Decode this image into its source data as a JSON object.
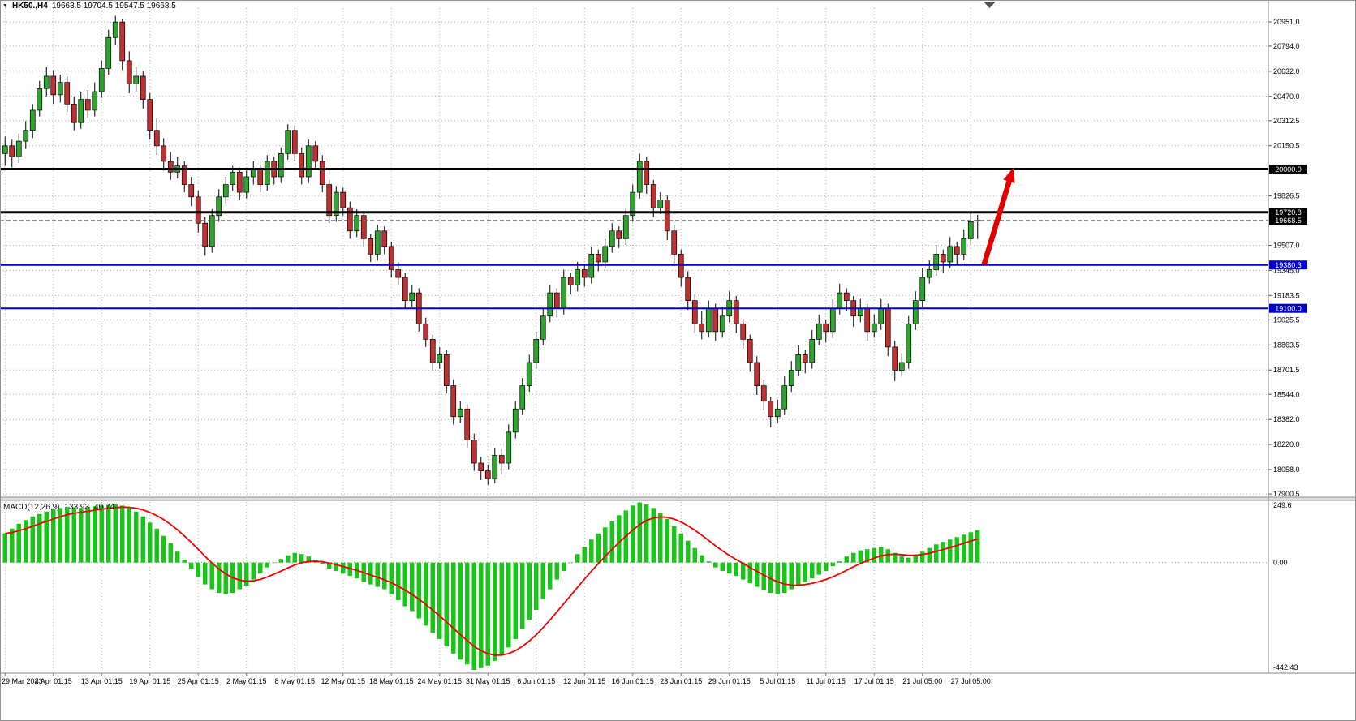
{
  "ui": {
    "symbol": "HK50.,H4",
    "ohlc": "19663.5 19704.5 19547.5 19668.5",
    "macd": {
      "name": "MACD(12,26,9)",
      "main_value": "133.93",
      "signal_value": "40.74",
      "scale_max": "249.6",
      "scale_zero": "0.00",
      "scale_min": "-442.43"
    }
  },
  "chart_data": [
    {
      "type": "candlestick",
      "symbol": "HK50.",
      "timeframe": "H4",
      "y_range": [
        17880,
        21040
      ],
      "y_axis_ticks": [
        "20951.0",
        "20794.0",
        "20632.0",
        "20470.0",
        "20312.5",
        "20150.5",
        "19826.5",
        "19507.0",
        "19345.0",
        "19183.5",
        "19025.5",
        "18863.5",
        "18701.5",
        "18544.0",
        "18382.0",
        "18220.0",
        "18058.0",
        "17900.5"
      ],
      "x_labels": [
        "29 Mar 2023",
        "4 Apr 01:15",
        "13 Apr 01:15",
        "19 Apr 01:15",
        "25 Apr 01:15",
        "2 May 01:15",
        "8 May 01:15",
        "12 May 01:15",
        "18 May 01:15",
        "24 May 01:15",
        "31 May 01:15",
        "6 Jun 01:15",
        "12 Jun 01:15",
        "16 Jun 01:15",
        "23 Jun 01:15",
        "29 Jun 01:15",
        "5 Jul 01:15",
        "11 Jul 01:15",
        "17 Jul 01:15",
        "21 Jul 05:00",
        "27 Jul 05:00"
      ],
      "x_label_indices": [
        0,
        7,
        14,
        21,
        28,
        35,
        42,
        49,
        56,
        63,
        70,
        77,
        84,
        91,
        98,
        105,
        112,
        119,
        126,
        133,
        140
      ],
      "horizontal_lines": [
        {
          "price": 20000.0,
          "label": "20000.0",
          "color": "#000000",
          "box_color": "#000000",
          "width": 3,
          "style": "solid"
        },
        {
          "price": 19720.8,
          "label": "19720.8",
          "color": "#000000",
          "box_color": "#000000",
          "width": 3,
          "style": "solid"
        },
        {
          "price": 19668.5,
          "label": "19668.5",
          "color": "#666666",
          "box_color": "#000000",
          "width": 1,
          "style": "dashed"
        },
        {
          "price": 19380.3,
          "label": "19380.3",
          "color": "#0000C8",
          "box_color": "#0000C8",
          "width": 2,
          "style": "solid"
        },
        {
          "price": 19100.0,
          "label": "19100.0",
          "color": "#0000C8",
          "box_color": "#0000C8",
          "width": 2,
          "style": "solid"
        }
      ],
      "annotation_arrow": {
        "from_price": 19385,
        "to_price": 20010,
        "color": "#E00000"
      },
      "colors": {
        "up": "#2FA42F",
        "down": "#C03232",
        "wick": "#000000",
        "grid": "#B0B0B0",
        "background": "#FFFFFF"
      },
      "candles_ohlc": [
        [
          20100,
          20210,
          20020,
          20150
        ],
        [
          20150,
          20190,
          20010,
          20080
        ],
        [
          20080,
          20230,
          20040,
          20180
        ],
        [
          20180,
          20310,
          20130,
          20250
        ],
        [
          20250,
          20420,
          20200,
          20380
        ],
        [
          20380,
          20570,
          20340,
          20520
        ],
        [
          20520,
          20660,
          20470,
          20600
        ],
        [
          20600,
          20640,
          20420,
          20480
        ],
        [
          20480,
          20610,
          20430,
          20560
        ],
        [
          20560,
          20600,
          20370,
          20420
        ],
        [
          20420,
          20470,
          20250,
          20300
        ],
        [
          20300,
          20500,
          20260,
          20450
        ],
        [
          20450,
          20510,
          20330,
          20380
        ],
        [
          20380,
          20560,
          20340,
          20500
        ],
        [
          20500,
          20700,
          20460,
          20650
        ],
        [
          20650,
          20900,
          20610,
          20850
        ],
        [
          20850,
          20990,
          20800,
          20950
        ],
        [
          20950,
          20970,
          20640,
          20700
        ],
        [
          20700,
          20760,
          20490,
          20550
        ],
        [
          20550,
          20660,
          20500,
          20600
        ],
        [
          20600,
          20630,
          20390,
          20450
        ],
        [
          20450,
          20490,
          20190,
          20250
        ],
        [
          20250,
          20330,
          20090,
          20150
        ],
        [
          20150,
          20200,
          19990,
          20050
        ],
        [
          20050,
          20110,
          19930,
          19980
        ],
        [
          19980,
          20080,
          19940,
          20020
        ],
        [
          20020,
          20050,
          19850,
          19900
        ],
        [
          19900,
          19950,
          19760,
          19820
        ],
        [
          19820,
          19860,
          19590,
          19650
        ],
        [
          19650,
          19690,
          19440,
          19500
        ],
        [
          19500,
          19740,
          19460,
          19700
        ],
        [
          19700,
          19870,
          19660,
          19820
        ],
        [
          19820,
          19950,
          19780,
          19900
        ],
        [
          19900,
          20020,
          19860,
          19980
        ],
        [
          19980,
          20010,
          19800,
          19850
        ],
        [
          19850,
          19990,
          19810,
          19950
        ],
        [
          19950,
          20050,
          19900,
          20000
        ],
        [
          20000,
          20030,
          19850,
          19900
        ],
        [
          19900,
          20090,
          19860,
          20050
        ],
        [
          20050,
          20080,
          19900,
          19950
        ],
        [
          19950,
          20140,
          19910,
          20100
        ],
        [
          20100,
          20290,
          20060,
          20250
        ],
        [
          20250,
          20280,
          20050,
          20100
        ],
        [
          20100,
          20140,
          19900,
          19950
        ],
        [
          19950,
          20190,
          19910,
          20150
        ],
        [
          20150,
          20180,
          20000,
          20050
        ],
        [
          20050,
          20090,
          19850,
          19900
        ],
        [
          19900,
          19930,
          19650,
          19700
        ],
        [
          19700,
          19890,
          19660,
          19850
        ],
        [
          19850,
          19880,
          19700,
          19750
        ],
        [
          19750,
          19790,
          19550,
          19600
        ],
        [
          19600,
          19740,
          19560,
          19700
        ],
        [
          19700,
          19730,
          19500,
          19550
        ],
        [
          19550,
          19580,
          19400,
          19450
        ],
        [
          19450,
          19640,
          19410,
          19600
        ],
        [
          19600,
          19630,
          19450,
          19500
        ],
        [
          19500,
          19530,
          19300,
          19350
        ],
        [
          19350,
          19400,
          19250,
          19300
        ],
        [
          19300,
          19330,
          19100,
          19150
        ],
        [
          19150,
          19250,
          19110,
          19200
        ],
        [
          19200,
          19230,
          18950,
          19000
        ],
        [
          19000,
          19040,
          18850,
          18900
        ],
        [
          18900,
          18930,
          18700,
          18750
        ],
        [
          18750,
          18850,
          18710,
          18800
        ],
        [
          18800,
          18830,
          18550,
          18600
        ],
        [
          18600,
          18640,
          18350,
          18400
        ],
        [
          18400,
          18500,
          18360,
          18450
        ],
        [
          18450,
          18480,
          18200,
          18250
        ],
        [
          18250,
          18290,
          18050,
          18100
        ],
        [
          18100,
          18140,
          17990,
          18050
        ],
        [
          18050,
          18090,
          17960,
          18000
        ],
        [
          18000,
          18200,
          17970,
          18150
        ],
        [
          18150,
          18190,
          18030,
          18100
        ],
        [
          18100,
          18350,
          18060,
          18300
        ],
        [
          18300,
          18500,
          18260,
          18450
        ],
        [
          18450,
          18650,
          18410,
          18600
        ],
        [
          18600,
          18800,
          18560,
          18750
        ],
        [
          18750,
          18950,
          18710,
          18900
        ],
        [
          18900,
          19100,
          18860,
          19050
        ],
        [
          19050,
          19250,
          19010,
          19200
        ],
        [
          19200,
          19230,
          19040,
          19100
        ],
        [
          19100,
          19350,
          19060,
          19300
        ],
        [
          19300,
          19330,
          19190,
          19250
        ],
        [
          19250,
          19400,
          19210,
          19350
        ],
        [
          19350,
          19380,
          19240,
          19300
        ],
        [
          19300,
          19500,
          19260,
          19450
        ],
        [
          19450,
          19480,
          19340,
          19400
        ],
        [
          19400,
          19550,
          19360,
          19500
        ],
        [
          19500,
          19650,
          19460,
          19600
        ],
        [
          19600,
          19630,
          19490,
          19550
        ],
        [
          19550,
          19750,
          19510,
          19700
        ],
        [
          19700,
          19900,
          19660,
          19850
        ],
        [
          19850,
          20100,
          19810,
          20050
        ],
        [
          20050,
          20080,
          19840,
          19900
        ],
        [
          19900,
          19930,
          19690,
          19750
        ],
        [
          19750,
          19850,
          19710,
          19800
        ],
        [
          19800,
          19830,
          19540,
          19600
        ],
        [
          19600,
          19640,
          19390,
          19450
        ],
        [
          19450,
          19480,
          19240,
          19300
        ],
        [
          19300,
          19340,
          19090,
          19150
        ],
        [
          19150,
          19190,
          18940,
          19000
        ],
        [
          19000,
          19080,
          18900,
          18950
        ],
        [
          18950,
          19150,
          18910,
          19100
        ],
        [
          19100,
          19130,
          18890,
          18950
        ],
        [
          18950,
          19110,
          18910,
          19050
        ],
        [
          19050,
          19210,
          19010,
          19150
        ],
        [
          19150,
          19180,
          18940,
          19000
        ],
        [
          19000,
          19030,
          18840,
          18900
        ],
        [
          18900,
          18930,
          18690,
          18750
        ],
        [
          18750,
          18790,
          18540,
          18600
        ],
        [
          18600,
          18640,
          18440,
          18500
        ],
        [
          18500,
          18530,
          18330,
          18400
        ],
        [
          18400,
          18510,
          18360,
          18450
        ],
        [
          18450,
          18660,
          18410,
          18600
        ],
        [
          18600,
          18760,
          18560,
          18700
        ],
        [
          18700,
          18860,
          18660,
          18800
        ],
        [
          18800,
          18830,
          18680,
          18750
        ],
        [
          18750,
          18960,
          18710,
          18900
        ],
        [
          18900,
          19060,
          18860,
          19000
        ],
        [
          19000,
          19030,
          18880,
          18950
        ],
        [
          18950,
          19160,
          18910,
          19100
        ],
        [
          19100,
          19260,
          19060,
          19200
        ],
        [
          19200,
          19230,
          19080,
          19150
        ],
        [
          19150,
          19180,
          18980,
          19050
        ],
        [
          19050,
          19160,
          19010,
          19100
        ],
        [
          19100,
          19130,
          18890,
          18950
        ],
        [
          18950,
          19060,
          18910,
          19000
        ],
        [
          19000,
          19160,
          18960,
          19100
        ],
        [
          19100,
          19130,
          18790,
          18850
        ],
        [
          18850,
          18890,
          18630,
          18700
        ],
        [
          18700,
          18810,
          18660,
          18750
        ],
        [
          18750,
          19050,
          18710,
          19000
        ],
        [
          19000,
          19210,
          18960,
          19150
        ],
        [
          19150,
          19360,
          19110,
          19300
        ],
        [
          19300,
          19410,
          19260,
          19350
        ],
        [
          19350,
          19510,
          19310,
          19450
        ],
        [
          19450,
          19480,
          19330,
          19400
        ],
        [
          19400,
          19560,
          19360,
          19500
        ],
        [
          19500,
          19530,
          19380,
          19450
        ],
        [
          19450,
          19610,
          19410,
          19550
        ],
        [
          19550,
          19720,
          19510,
          19660
        ],
        [
          19663.5,
          19704.5,
          19547.5,
          19668.5
        ]
      ]
    },
    {
      "type": "bar",
      "name": "MACD(12,26,9) histogram",
      "y_range": [
        -442.43,
        249.6
      ],
      "signal_period": 9,
      "colors": {
        "bars": "#17C617",
        "signal": "#F00000"
      },
      "values": [
        120,
        140,
        160,
        175,
        190,
        200,
        210,
        220,
        225,
        230,
        228,
        225,
        230,
        232,
        235,
        238,
        240,
        235,
        225,
        210,
        190,
        165,
        140,
        110,
        80,
        45,
        10,
        -25,
        -60,
        -90,
        -110,
        -125,
        -130,
        -125,
        -110,
        -95,
        -70,
        -45,
        -20,
        0,
        15,
        30,
        40,
        35,
        25,
        10,
        -5,
        -25,
        -35,
        -45,
        -55,
        -65,
        -80,
        -90,
        -100,
        -110,
        -130,
        -155,
        -180,
        -200,
        -230,
        -260,
        -290,
        -315,
        -345,
        -375,
        -400,
        -420,
        -442.43,
        -435,
        -425,
        -405,
        -380,
        -350,
        -315,
        -275,
        -235,
        -195,
        -150,
        -110,
        -70,
        -35,
        0,
        35,
        65,
        95,
        120,
        145,
        170,
        195,
        215,
        235,
        248,
        240,
        225,
        205,
        180,
        150,
        120,
        90,
        60,
        30,
        5,
        -20,
        -35,
        -45,
        -55,
        -70,
        -85,
        -100,
        -115,
        -125,
        -130,
        -125,
        -110,
        -95,
        -80,
        -65,
        -50,
        -35,
        -15,
        5,
        25,
        40,
        50,
        55,
        60,
        65,
        55,
        40,
        25,
        20,
        30,
        45,
        60,
        75,
        85,
        95,
        105,
        115,
        125,
        133.93
      ]
    }
  ]
}
